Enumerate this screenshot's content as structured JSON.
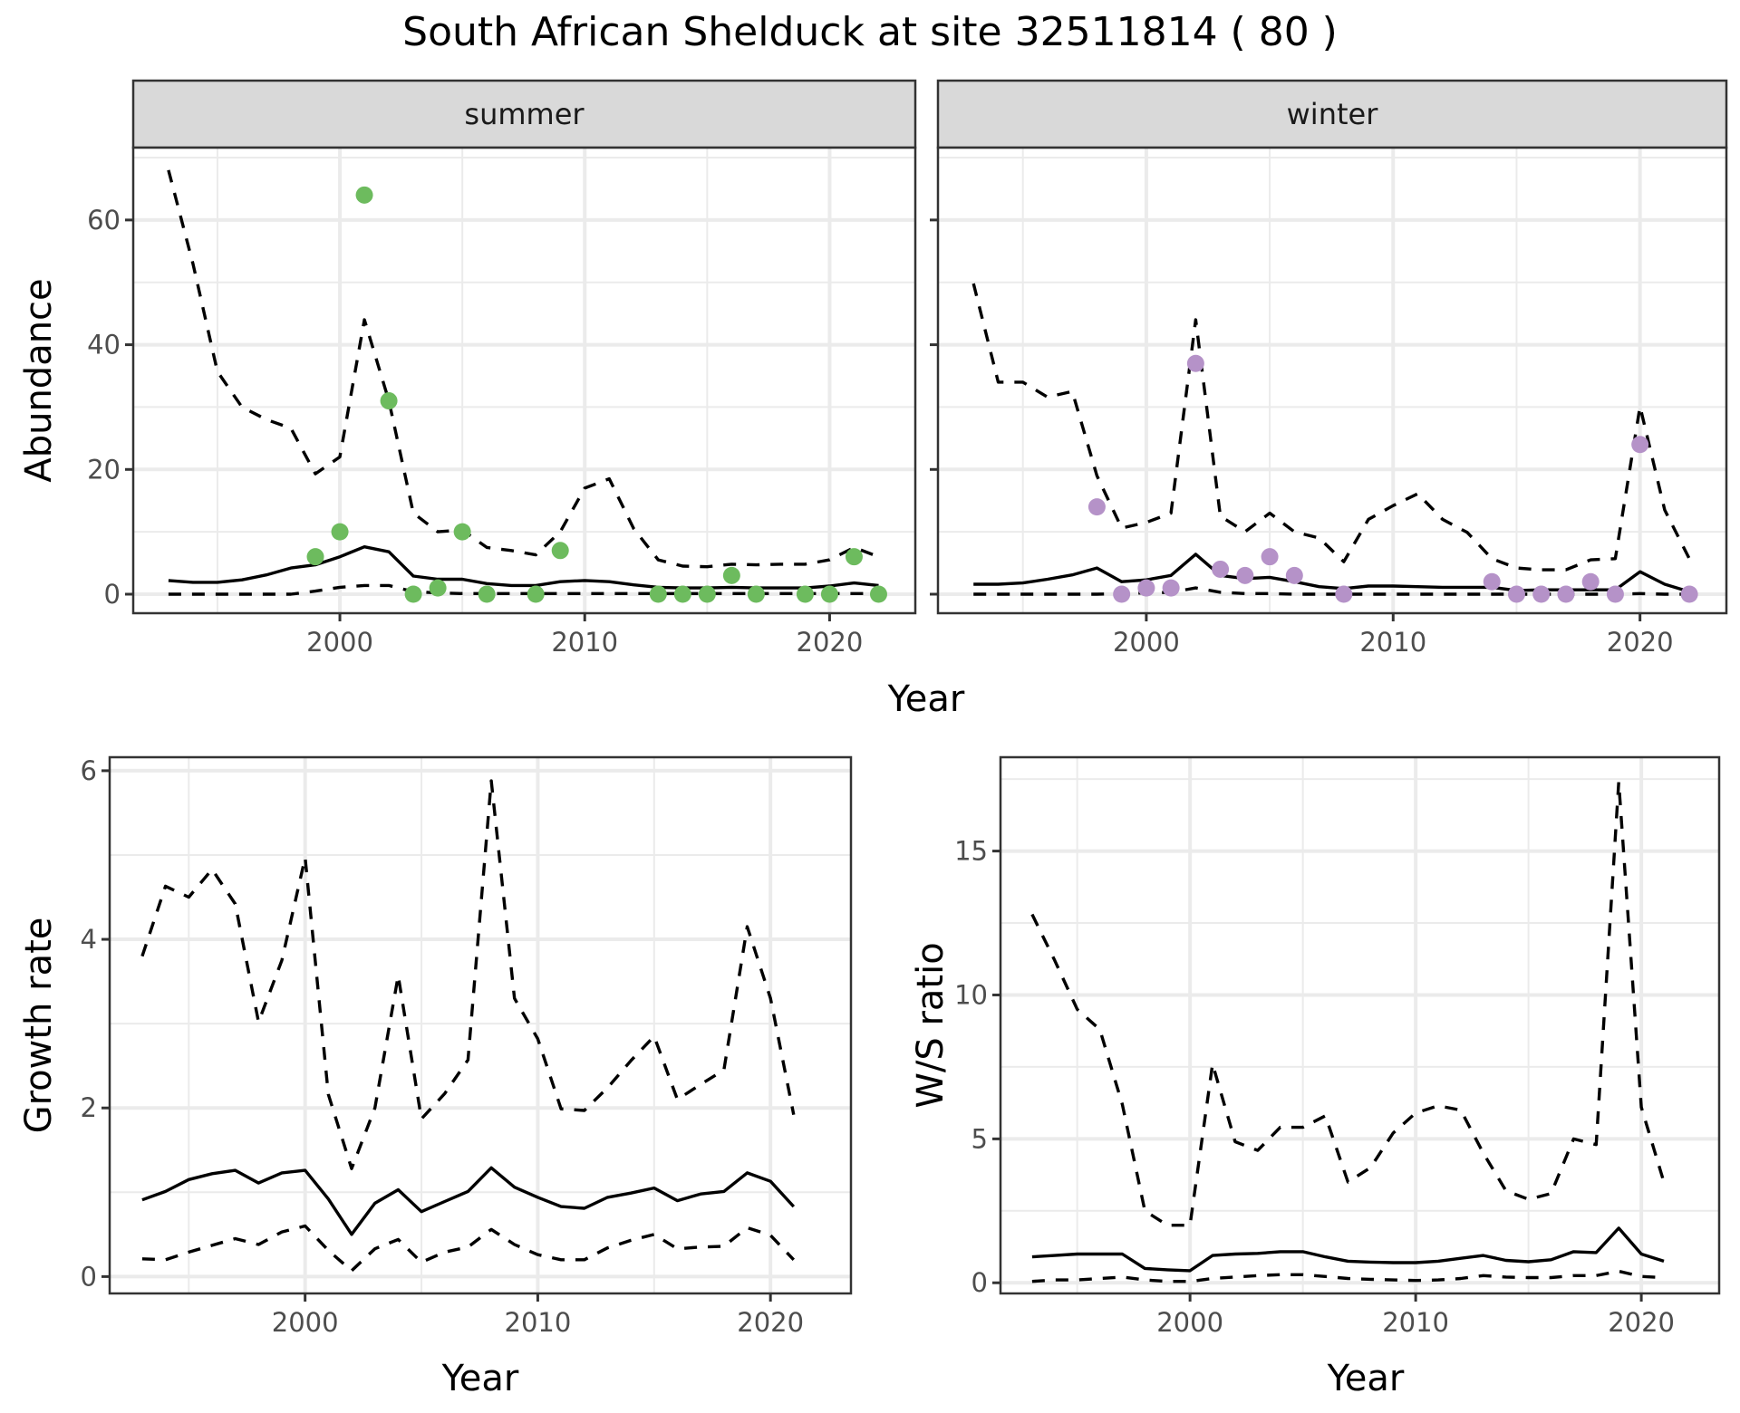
{
  "figure": {
    "title": "South African Shelduck at site 32511814 ( 80 )",
    "colors": {
      "summer_points": "#6DBB5E",
      "winter_points": "#B592C8",
      "lines": "#000000",
      "strip_fill": "#D9D9D9",
      "grid": "#EBEBEB",
      "border": "#333333"
    }
  },
  "chart_data": [
    {
      "id": "abundance-summer",
      "type": "line+scatter",
      "facet": "summer",
      "xlabel": "Year",
      "ylabel": "Abundance",
      "xlim": [
        1991.56,
        2023.5
      ],
      "ylim": [
        -3.05,
        71.6
      ],
      "xticks": [
        2000,
        2010,
        2020
      ],
      "yticks": [
        0,
        20,
        40,
        60
      ],
      "grid": true,
      "x": [
        1993,
        1994,
        1995,
        1996,
        1997,
        1998,
        1999,
        2000,
        2001,
        2002,
        2003,
        2004,
        2005,
        2006,
        2007,
        2008,
        2009,
        2010,
        2011,
        2012,
        2013,
        2014,
        2015,
        2016,
        2017,
        2018,
        2019,
        2020,
        2021,
        2022
      ],
      "series": [
        {
          "name": "upper",
          "style": "dashed",
          "values": [
            68,
            53,
            35.7,
            30,
            28,
            26.6,
            19.3,
            22,
            44,
            31,
            13,
            10,
            10.3,
            7.5,
            7,
            6.3,
            10,
            17,
            18.5,
            10.5,
            5.5,
            4.5,
            4.4,
            4.8,
            4.7,
            4.8,
            4.8,
            5.5,
            7.5,
            6
          ]
        },
        {
          "name": "mean",
          "style": "solid",
          "values": [
            2.2,
            1.9,
            1.9,
            2.3,
            3.1,
            4.2,
            4.7,
            6,
            7.6,
            6.8,
            2.9,
            2.4,
            2.4,
            1.7,
            1.4,
            1.4,
            2,
            2.2,
            2,
            1.5,
            1.1,
            1,
            1,
            1.1,
            1,
            1,
            1,
            1.3,
            1.8,
            1.4
          ]
        },
        {
          "name": "lower",
          "style": "dashed",
          "values": [
            0,
            0,
            0,
            0,
            0,
            0,
            0.5,
            1.1,
            1.4,
            1.4,
            0.4,
            0.2,
            0.1,
            0.1,
            0.1,
            0.1,
            0.1,
            0.1,
            0.1,
            0.1,
            0.1,
            0.1,
            0.1,
            0.1,
            0.1,
            0.1,
            0.1,
            0.1,
            0.1,
            0.1
          ]
        }
      ],
      "points": {
        "x": [
          1999,
          2000,
          2001,
          2002,
          2003,
          2004,
          2005,
          2006,
          2008,
          2009,
          2013,
          2014,
          2015,
          2016,
          2017,
          2019,
          2020,
          2021,
          2022
        ],
        "y": [
          6,
          10,
          64,
          31,
          0,
          1,
          10,
          0,
          0,
          7,
          0,
          0,
          0,
          3,
          0,
          0,
          0,
          6,
          0
        ]
      }
    },
    {
      "id": "abundance-winter",
      "type": "line+scatter",
      "facet": "winter",
      "xlabel": "Year",
      "ylabel": "Abundance",
      "xlim": [
        1991.56,
        2023.5
      ],
      "ylim": [
        -3.05,
        71.6
      ],
      "xticks": [
        2000,
        2010,
        2020
      ],
      "yticks": [
        0,
        20,
        40,
        60
      ],
      "grid": true,
      "x": [
        1993,
        1994,
        1995,
        1996,
        1997,
        1998,
        1999,
        2000,
        2001,
        2002,
        2003,
        2004,
        2005,
        2006,
        2007,
        2008,
        2009,
        2010,
        2011,
        2012,
        2013,
        2014,
        2015,
        2016,
        2017,
        2018,
        2019,
        2020,
        2021,
        2022
      ],
      "series": [
        {
          "name": "upper",
          "style": "dashed",
          "values": [
            49.8,
            34,
            34,
            31.6,
            32.5,
            19,
            10.6,
            11.5,
            13,
            44,
            12.5,
            10,
            13,
            10,
            9,
            5.2,
            12,
            14.2,
            16.1,
            12,
            9.9,
            5.7,
            4.2,
            3.9,
            3.9,
            5.5,
            5.7,
            30.1,
            13.5,
            5.7
          ]
        },
        {
          "name": "mean",
          "style": "solid",
          "values": [
            1.6,
            1.6,
            1.8,
            2.4,
            3.1,
            4.2,
            2,
            2.3,
            3,
            6.4,
            3,
            2.5,
            2.7,
            2,
            1.2,
            0.9,
            1.3,
            1.3,
            1.2,
            1.1,
            1.1,
            1.1,
            0.6,
            0.7,
            0.7,
            0.7,
            0.7,
            3.6,
            1.6,
            0.4
          ]
        },
        {
          "name": "lower",
          "style": "dashed",
          "values": [
            0,
            0,
            0,
            0,
            0,
            0,
            0.1,
            0.2,
            0.3,
            1,
            0.3,
            0.1,
            0.1,
            0,
            0,
            0,
            0,
            0,
            0,
            0,
            0,
            0,
            0,
            0,
            0,
            0,
            0,
            0.1,
            0,
            0
          ]
        }
      ],
      "points": {
        "x": [
          1998,
          1999,
          2000,
          2001,
          2002,
          2003,
          2004,
          2005,
          2006,
          2008,
          2014,
          2015,
          2016,
          2017,
          2018,
          2019,
          2020,
          2022
        ],
        "y": [
          14,
          0,
          1,
          1,
          37,
          4,
          3,
          6,
          3,
          0,
          2,
          0,
          0,
          0,
          2,
          0,
          24,
          0
        ]
      }
    },
    {
      "id": "growth-rate",
      "type": "line",
      "xlabel": "Year",
      "ylabel": "Growth rate",
      "xlim": [
        1991.6,
        2023.46
      ],
      "ylim": [
        -0.2,
        6.16
      ],
      "xticks": [
        2000,
        2010,
        2020
      ],
      "yticks": [
        0,
        2,
        4,
        6
      ],
      "grid": true,
      "x": [
        1993,
        1994,
        1995,
        1996,
        1997,
        1998,
        1999,
        2000,
        2001,
        2002,
        2003,
        2004,
        2005,
        2006,
        2007,
        2008,
        2009,
        2010,
        2011,
        2012,
        2013,
        2014,
        2015,
        2016,
        2017,
        2018,
        2019,
        2020,
        2021
      ],
      "series": [
        {
          "name": "upper",
          "style": "dashed",
          "values": [
            3.8,
            4.63,
            4.5,
            4.83,
            4.42,
            3.02,
            3.75,
            4.97,
            2.16,
            1.28,
            2.0,
            3.57,
            1.87,
            2.17,
            2.57,
            5.88,
            3.3,
            2.82,
            1.99,
            1.97,
            2.24,
            2.56,
            2.85,
            2.1,
            2.28,
            2.45,
            4.15,
            3.3,
            1.92
          ]
        },
        {
          "name": "mean",
          "style": "solid",
          "values": [
            0.91,
            1.01,
            1.15,
            1.22,
            1.26,
            1.11,
            1.23,
            1.26,
            0.92,
            0.5,
            0.87,
            1.03,
            0.77,
            0.89,
            1.01,
            1.29,
            1.06,
            0.94,
            0.83,
            0.81,
            0.94,
            0.99,
            1.05,
            0.9,
            0.98,
            1.01,
            1.23,
            1.13,
            0.83
          ]
        },
        {
          "name": "lower",
          "style": "dashed",
          "values": [
            0.21,
            0.2,
            0.29,
            0.37,
            0.45,
            0.38,
            0.53,
            0.6,
            0.31,
            0.07,
            0.33,
            0.44,
            0.17,
            0.29,
            0.35,
            0.56,
            0.38,
            0.26,
            0.2,
            0.2,
            0.34,
            0.43,
            0.5,
            0.33,
            0.35,
            0.36,
            0.58,
            0.49,
            0.2
          ]
        }
      ]
    },
    {
      "id": "ws-ratio",
      "type": "line",
      "xlabel": "Year",
      "ylabel": "W/S ratio",
      "xlim": [
        1991.6,
        2023.45
      ],
      "ylim": [
        -0.37,
        18.26
      ],
      "xticks": [
        2000,
        2010,
        2020
      ],
      "yticks": [
        0,
        5,
        10,
        15
      ],
      "grid": true,
      "x": [
        1993,
        1994,
        1995,
        1996,
        1997,
        1998,
        1999,
        2000,
        2001,
        2002,
        2003,
        2004,
        2005,
        2006,
        2007,
        2008,
        2009,
        2010,
        2011,
        2012,
        2013,
        2014,
        2015,
        2016,
        2017,
        2018,
        2019,
        2020,
        2021
      ],
      "series": [
        {
          "name": "upper",
          "style": "dashed",
          "values": [
            12.8,
            11.2,
            9.5,
            8.8,
            6.2,
            2.5,
            2.0,
            2.0,
            7.6,
            4.9,
            4.6,
            5.4,
            5.4,
            5.8,
            3.5,
            4.0,
            5.2,
            5.9,
            6.15,
            6.0,
            4.5,
            3.2,
            2.9,
            3.1,
            5.0,
            4.8,
            17.4,
            6.1,
            3.5
          ]
        },
        {
          "name": "mean",
          "style": "solid",
          "values": [
            0.9,
            0.95,
            1.0,
            1.0,
            1.0,
            0.5,
            0.45,
            0.42,
            0.95,
            1.0,
            1.02,
            1.08,
            1.08,
            0.9,
            0.75,
            0.72,
            0.7,
            0.7,
            0.75,
            0.85,
            0.95,
            0.78,
            0.73,
            0.8,
            1.08,
            1.05,
            1.9,
            1.0,
            0.75
          ]
        },
        {
          "name": "lower",
          "style": "dashed",
          "values": [
            0.05,
            0.1,
            0.1,
            0.15,
            0.2,
            0.1,
            0.05,
            0.05,
            0.15,
            0.2,
            0.25,
            0.28,
            0.28,
            0.22,
            0.15,
            0.12,
            0.1,
            0.08,
            0.1,
            0.15,
            0.25,
            0.2,
            0.18,
            0.18,
            0.25,
            0.25,
            0.4,
            0.22,
            0.18
          ]
        }
      ]
    }
  ],
  "labels": {
    "strip_summer": "summer",
    "strip_winter": "winter",
    "top_xlabel": "Year",
    "top_ylabel": "Abundance",
    "growth_xlabel": "Year",
    "growth_ylabel": "Growth rate",
    "ws_xlabel": "Year",
    "ws_ylabel": "W/S ratio"
  }
}
